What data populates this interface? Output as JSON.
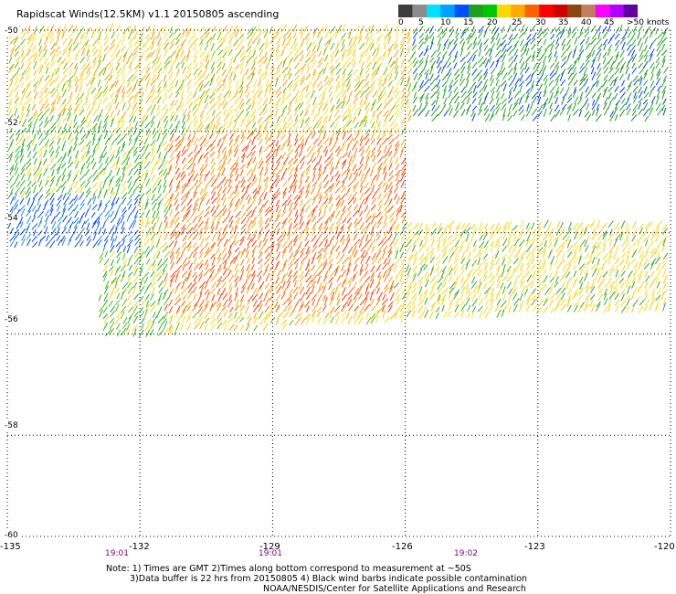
{
  "title": "Rapidscat Winds(12.5KM) v1.1 20150805 ascending",
  "colorbar": {
    "colors": [
      "#3c3c3c",
      "#8c8c8c",
      "#00e0ff",
      "#00a0ff",
      "#0050ff",
      "#1f9d1f",
      "#00c800",
      "#ffd700",
      "#ffaa00",
      "#ff6000",
      "#ff0000",
      "#d00000",
      "#8b4513",
      "#c08060",
      "#ff00ff",
      "#b000ff",
      "#6000a0"
    ],
    "labels": [
      "0",
      "5",
      "10",
      "15",
      "20",
      "25",
      "30",
      "35",
      "40",
      "45",
      ">50 knots"
    ]
  },
  "axes": {
    "y_labels": [
      "-50",
      "-52",
      "-54",
      "-56",
      "-58",
      "-60"
    ],
    "x_labels": [
      "-135",
      "-132",
      "-129",
      "-126",
      "-123",
      "-120"
    ],
    "x_values": [
      -135,
      -132,
      -129,
      -126,
      -123,
      -120
    ],
    "y_values": [
      -50,
      -52,
      -54,
      -56,
      -58,
      -60
    ]
  },
  "times": [
    "19:01",
    "19:01",
    "19:02"
  ],
  "notes": {
    "line1": "Note: 1) Times are GMT 2)Times along bottom correspond to measurement at ~50S",
    "line2": "3)Data buffer is 22 hrs from 20150805 4) Black wind barbs indicate possible contamination",
    "line3": "NOAA/NESDIS/Center for Satellite Applications and Research"
  }
}
